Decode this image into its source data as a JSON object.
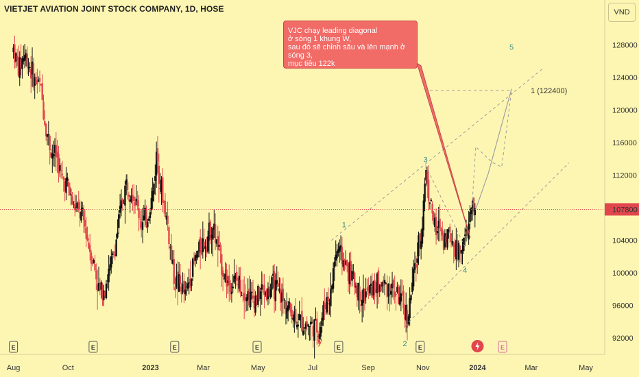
{
  "header": {
    "title": "VIETJET AVIATION JOINT STOCK COMPANY, 1D, HOSE",
    "currency_button": "VND"
  },
  "annotation": {
    "text": "VJC chạy leading diagonal\nở sóng 1 khung W,\nsau đó sẽ chỉnh sâu và lên mạnh ở sóng 3,\nmục tiêu 122k"
  },
  "colors": {
    "background": "#fdf6b3",
    "up_candle": "#111111",
    "down_candle": "#e2464d",
    "price_line": "#e2464d",
    "wave_label": "#3a8a84",
    "callout": "#f16b67"
  },
  "chart_data": {
    "type": "candlestick",
    "symbol": "VJC",
    "interval": "1D",
    "y_axis": {
      "ticks": [
        "92000",
        "96000",
        "100000",
        "104000",
        "108000",
        "112000",
        "116000",
        "120000",
        "124000",
        "128000"
      ],
      "range": [
        90000,
        133500
      ]
    },
    "x_axis": {
      "ticks": [
        "Aug",
        "Oct",
        "2023",
        "Mar",
        "May",
        "Jul",
        "Sep",
        "Nov",
        "2024",
        "Mar",
        "May"
      ],
      "tick_days": [
        0,
        61,
        153,
        212,
        273,
        334,
        396,
        457,
        518,
        578,
        639
      ],
      "range_days": [
        -15,
        660
      ]
    },
    "last_price": "107800",
    "last_price_value": 107800,
    "target_label": "1 (122400)",
    "target_value": 122400,
    "waves": [
      {
        "label": "1",
        "day": 369,
        "price": 105600
      },
      {
        "label": "2",
        "day": 437,
        "price": 91000
      },
      {
        "label": "3",
        "day": 460,
        "price": 113600
      },
      {
        "label": "4",
        "day": 504,
        "price": 100000
      },
      {
        "label": "5",
        "day": 556,
        "price": 127400
      },
      {
        "label": "y",
        "day": 342,
        "price": 91200
      }
    ],
    "earnings_markers": [
      "E",
      "E",
      "E",
      "E",
      "E",
      "E",
      "E"
    ],
    "earnings_days": [
      0,
      89,
      180,
      272,
      363,
      454,
      546
    ],
    "dividend_marker_day": 518,
    "price_path": [
      [
        0,
        127500
      ],
      [
        6,
        125000
      ],
      [
        12,
        127000
      ],
      [
        18,
        125500
      ],
      [
        24,
        123500
      ],
      [
        30,
        123000
      ],
      [
        36,
        118000
      ],
      [
        42,
        115000
      ],
      [
        48,
        114500
      ],
      [
        54,
        111500
      ],
      [
        60,
        111000
      ],
      [
        66,
        108500
      ],
      [
        72,
        107500
      ],
      [
        78,
        106500
      ],
      [
        84,
        103500
      ],
      [
        90,
        101000
      ],
      [
        96,
        97500
      ],
      [
        102,
        98500
      ],
      [
        108,
        100500
      ],
      [
        114,
        103500
      ],
      [
        120,
        108000
      ],
      [
        126,
        111000
      ],
      [
        132,
        110500
      ],
      [
        138,
        108000
      ],
      [
        144,
        106000
      ],
      [
        150,
        107000
      ],
      [
        156,
        110000
      ],
      [
        160,
        115000
      ],
      [
        164,
        111000
      ],
      [
        168,
        108500
      ],
      [
        172,
        106000
      ],
      [
        176,
        102000
      ],
      [
        180,
        99000
      ],
      [
        186,
        98500
      ],
      [
        192,
        97200
      ],
      [
        198,
        100000
      ],
      [
        204,
        102000
      ],
      [
        210,
        103500
      ],
      [
        216,
        104200
      ],
      [
        222,
        106000
      ],
      [
        226,
        104000
      ],
      [
        230,
        102000
      ],
      [
        236,
        99500
      ],
      [
        242,
        98500
      ],
      [
        248,
        99000
      ],
      [
        254,
        98500
      ],
      [
        260,
        97600
      ],
      [
        266,
        96800
      ],
      [
        272,
        97000
      ],
      [
        278,
        98000
      ],
      [
        284,
        97500
      ],
      [
        290,
        98500
      ],
      [
        296,
        97500
      ],
      [
        302,
        96500
      ],
      [
        308,
        95500
      ],
      [
        314,
        94800
      ],
      [
        320,
        94000
      ],
      [
        326,
        93800
      ],
      [
        332,
        93600
      ],
      [
        338,
        93200
      ],
      [
        342,
        93000
      ],
      [
        346,
        95500
      ],
      [
        350,
        96800
      ],
      [
        354,
        97000
      ],
      [
        358,
        101500
      ],
      [
        362,
        103000
      ],
      [
        366,
        102000
      ],
      [
        370,
        101000
      ],
      [
        376,
        100000
      ],
      [
        382,
        98500
      ],
      [
        388,
        97000
      ],
      [
        394,
        97500
      ],
      [
        400,
        98000
      ],
      [
        406,
        98500
      ],
      [
        412,
        98500
      ],
      [
        418,
        98500
      ],
      [
        424,
        98000
      ],
      [
        430,
        97000
      ],
      [
        436,
        95500
      ],
      [
        440,
        94500
      ],
      [
        444,
        97500
      ],
      [
        448,
        100500
      ],
      [
        452,
        103000
      ],
      [
        456,
        105500
      ],
      [
        460,
        112800
      ],
      [
        464,
        109500
      ],
      [
        468,
        107200
      ],
      [
        472,
        104500
      ],
      [
        476,
        106000
      ],
      [
        480,
        104000
      ],
      [
        484,
        105000
      ],
      [
        488,
        104500
      ],
      [
        492,
        103500
      ],
      [
        496,
        102500
      ],
      [
        500,
        103500
      ],
      [
        504,
        104000
      ],
      [
        508,
        105800
      ],
      [
        512,
        108000
      ],
      [
        516,
        107800
      ]
    ]
  }
}
